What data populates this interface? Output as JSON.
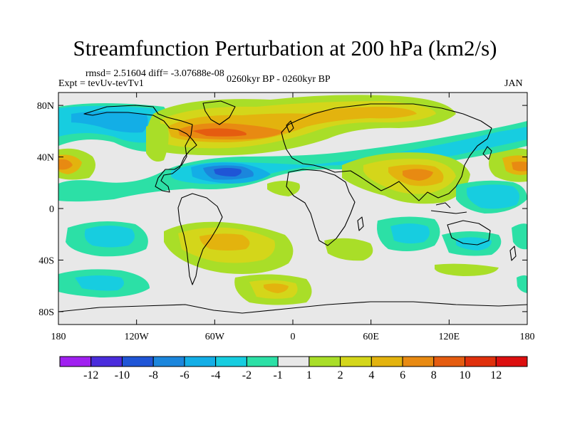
{
  "title": "Streamfunction Perturbation at 200 hPa (km2/s)",
  "stats": "rmsd= 2.51604  diff= -3.07688e-08",
  "experiment": "Expt = tevUv-tevTv1",
  "period": "0260kyr BP - 0260kyr BP",
  "month": "JAN",
  "map": {
    "type": "contour-map",
    "variable": "streamfunction perturbation",
    "level": "200 hPa",
    "units": "km2/s",
    "projection": "cylindrical-equidistant",
    "lon_range": [
      -180,
      180
    ],
    "lat_range": [
      -90,
      90
    ],
    "lon_tick_labels": [
      "180",
      "120W",
      "60W",
      "0",
      "60E",
      "120E",
      "180"
    ],
    "lat_tick_labels": [
      "80N",
      "40N",
      "0",
      "40S",
      "80S"
    ],
    "lon_ticks": [
      -180,
      -120,
      -60,
      0,
      60,
      120,
      180
    ],
    "lat_ticks": [
      80,
      40,
      0,
      -40,
      -80
    ]
  },
  "colorbar": {
    "labels": [
      "-12",
      "-10",
      "-8",
      "-6",
      "-4",
      "-2",
      "-1",
      "1",
      "2",
      "4",
      "6",
      "8",
      "10",
      "12"
    ],
    "colors": [
      "#a020f0",
      "#4a2cdc",
      "#1f55d6",
      "#1b86dc",
      "#13aee6",
      "#17cde0",
      "#2ce0a6",
      "#e8e8e8",
      "#a9de28",
      "#d4d61a",
      "#e3b30e",
      "#e88a12",
      "#e55c10",
      "#e0300c",
      "#dc0f0f"
    ]
  }
}
